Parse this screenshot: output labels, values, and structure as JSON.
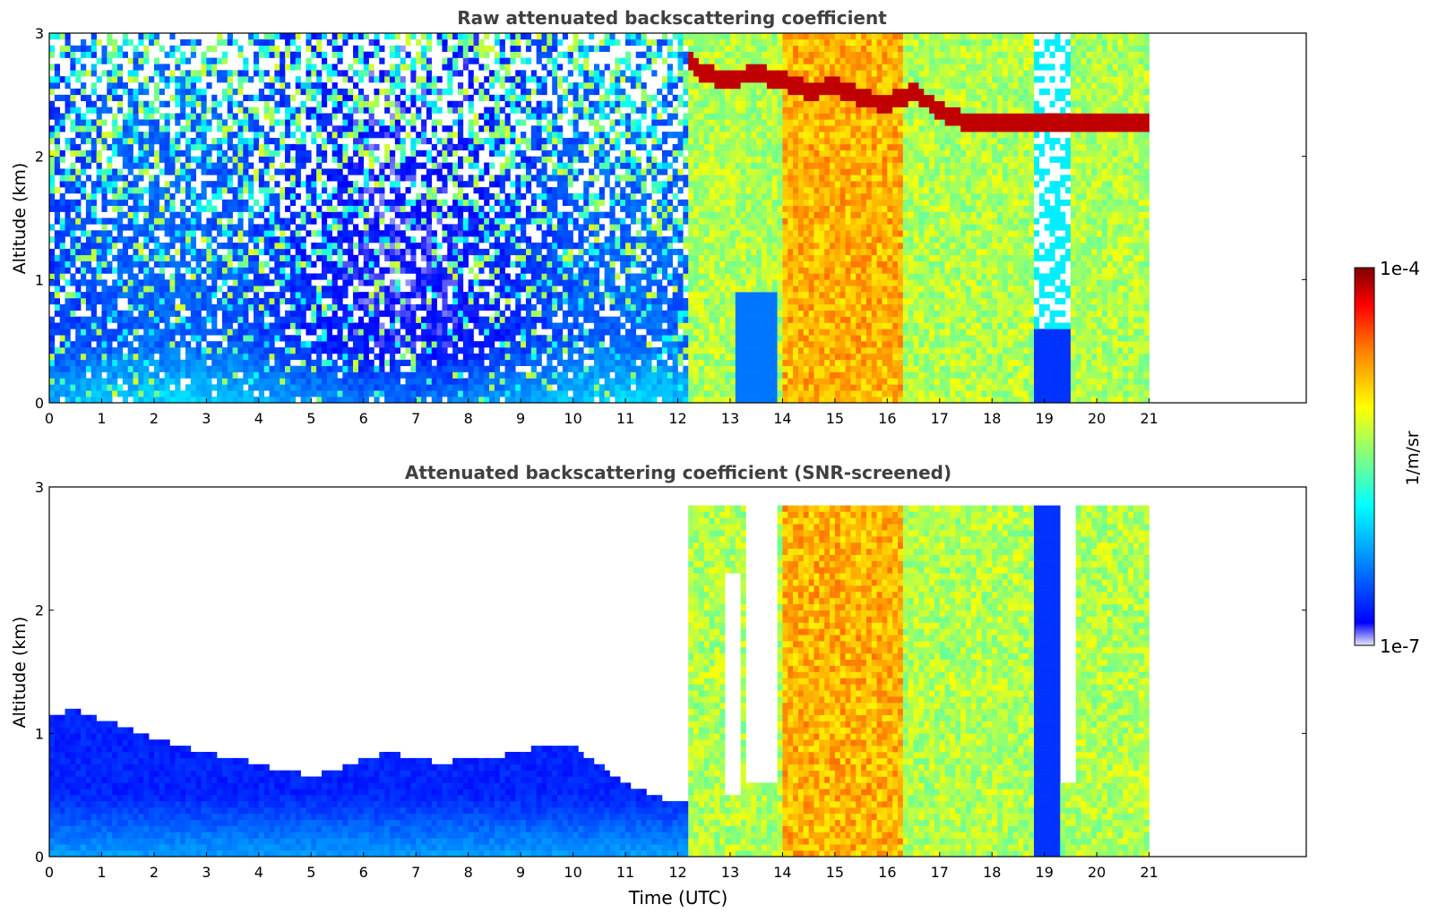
{
  "chart_data": [
    {
      "type": "heatmap",
      "title": "Raw attenuated backscattering coefficient",
      "xlabel": "",
      "ylabel": "Altitude (km)",
      "xlim": [
        0,
        24
      ],
      "ylim": [
        0,
        3
      ],
      "xticks": [
        "0",
        "1",
        "2",
        "3",
        "4",
        "5",
        "6",
        "7",
        "8",
        "9",
        "10",
        "11",
        "12",
        "13",
        "14",
        "15",
        "16",
        "17",
        "18",
        "19",
        "20",
        "21"
      ],
      "yticks": [
        "0",
        "1",
        "2",
        "3"
      ],
      "data_end_hour": 21,
      "features": {
        "surface_layer_top_km": 0.5,
        "cloud_layer_start_hour": 12.2,
        "cloud_base_km": [
          [
            12.1,
            2.75
          ],
          [
            12.5,
            2.6
          ],
          [
            13.0,
            2.55
          ],
          [
            13.5,
            2.6
          ],
          [
            14.0,
            2.55
          ],
          [
            14.5,
            2.45
          ],
          [
            15.0,
            2.5
          ],
          [
            15.5,
            2.4
          ],
          [
            16.0,
            2.35
          ],
          [
            16.5,
            2.45
          ],
          [
            17.0,
            2.3
          ],
          [
            17.5,
            2.2
          ]
        ]
      }
    },
    {
      "type": "heatmap",
      "title": "Attenuated backscattering coefficient (SNR-screened)",
      "xlabel": "Time (UTC)",
      "ylabel": "Altitude (km)",
      "xlim": [
        0,
        24
      ],
      "ylim": [
        0,
        3
      ],
      "xticks": [
        "0",
        "1",
        "2",
        "3",
        "4",
        "5",
        "6",
        "7",
        "8",
        "9",
        "10",
        "11",
        "12",
        "13",
        "14",
        "15",
        "16",
        "17",
        "18",
        "19",
        "20",
        "21"
      ],
      "yticks": [
        "0",
        "1",
        "2",
        "3"
      ],
      "data_end_hour": 21,
      "screened_top_km": [
        [
          0.0,
          1.15
        ],
        [
          0.5,
          1.2
        ],
        [
          1.0,
          1.1
        ],
        [
          1.5,
          1.05
        ],
        [
          2.0,
          0.95
        ],
        [
          2.5,
          0.9
        ],
        [
          3.0,
          0.85
        ],
        [
          3.5,
          0.8
        ],
        [
          4.0,
          0.75
        ],
        [
          4.5,
          0.7
        ],
        [
          5.0,
          0.65
        ],
        [
          5.5,
          0.7
        ],
        [
          6.0,
          0.8
        ],
        [
          6.5,
          0.85
        ],
        [
          7.0,
          0.8
        ],
        [
          7.5,
          0.75
        ],
        [
          8.0,
          0.8
        ],
        [
          8.5,
          0.8
        ],
        [
          9.0,
          0.85
        ],
        [
          9.5,
          0.9
        ],
        [
          10.0,
          0.9
        ],
        [
          10.5,
          0.75
        ],
        [
          11.0,
          0.6
        ],
        [
          11.5,
          0.5
        ],
        [
          12.0,
          0.45
        ]
      ]
    }
  ],
  "colorbar": {
    "label": "1/m/sr",
    "max_label": "1e-4",
    "min_label": "1e-7",
    "colormap": "jet",
    "colors": [
      "#e8e8f8",
      "#0000ff",
      "#00a0ff",
      "#00ffff",
      "#80ff80",
      "#ffff00",
      "#ff8000",
      "#ff0000",
      "#800000"
    ]
  }
}
